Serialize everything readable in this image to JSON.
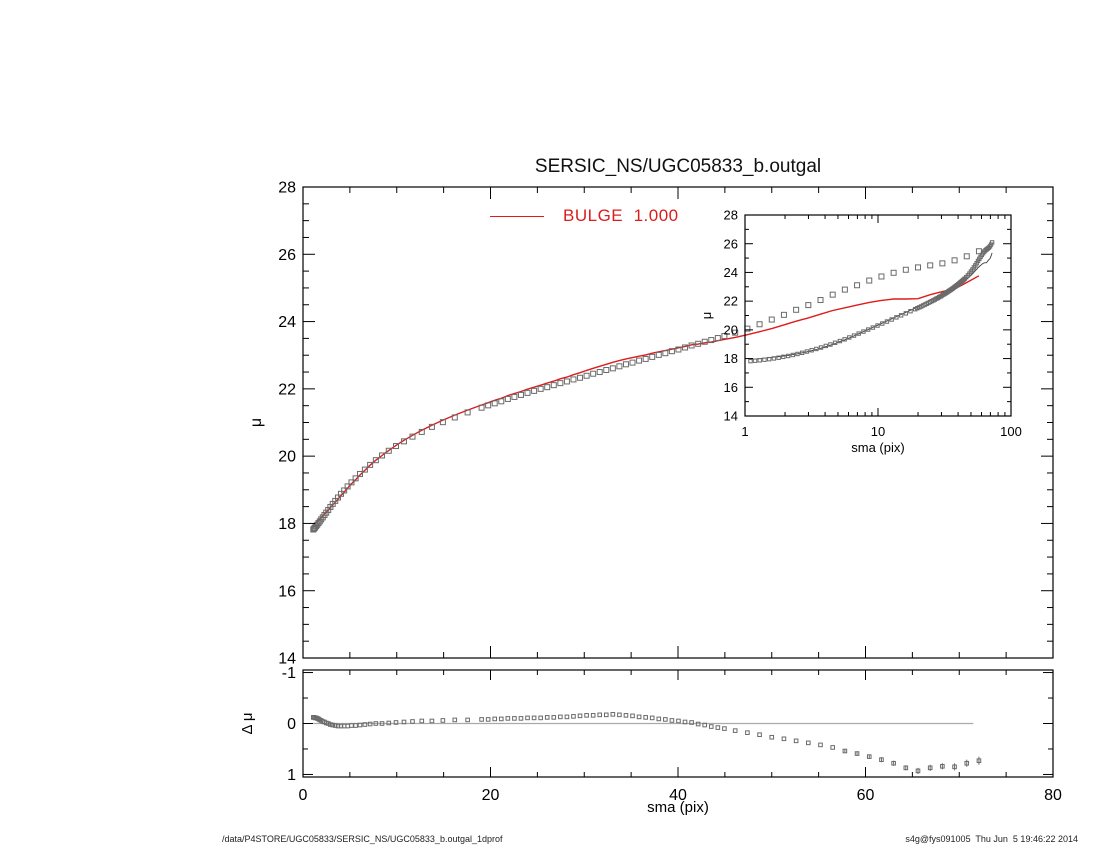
{
  "title": "SERSIC_NS/UGC05833_b.outgal",
  "legend": {
    "label": "BULGE  1.000",
    "color": "#dd1c1c"
  },
  "footer": {
    "left": "/data/P4STORE/UGC05833/SERSIC_NS/UGC05833_b.outgal_1dprof",
    "right": "s4g@fys091005  Thu Jun  5 19:46:22 2014"
  },
  "colors": {
    "data": "#6a6a6a",
    "model": "#dd1c1c",
    "inset_line": "#3c3c3c",
    "zero_line": "#aaaaaa",
    "axis": "#000000"
  },
  "chart_data": {
    "type": "scatter",
    "profile": {
      "sma": [
        1.1,
        1.19,
        1.29,
        1.4,
        1.52,
        1.65,
        1.79,
        1.94,
        2.11,
        2.29,
        2.48,
        2.69,
        2.92,
        3.17,
        3.44,
        3.73,
        4.05,
        4.39,
        4.76,
        5.17,
        5.61,
        6.08,
        6.6,
        7.16,
        7.77,
        8.43,
        9.15,
        9.92,
        10.77,
        11.68,
        12.67,
        13.75,
        14.92,
        16.19,
        17.56,
        19.05,
        19.75,
        20.45,
        21.15,
        21.85,
        22.55,
        23.25,
        23.95,
        24.65,
        25.35,
        26.05,
        26.75,
        27.45,
        28.15,
        28.85,
        29.55,
        30.25,
        30.95,
        31.65,
        32.35,
        33.05,
        33.75,
        34.45,
        35.15,
        35.85,
        36.55,
        37.25,
        37.95,
        38.65,
        39.35,
        40.05,
        40.75,
        41.45,
        42.15,
        42.85,
        43.55,
        44.25,
        44.95,
        46.1,
        47.4,
        48.7,
        50,
        51.3,
        52.6,
        53.9,
        55.2,
        56.5,
        57.8,
        59.1,
        60.4,
        61.7,
        63,
        64.3,
        65.6,
        66.9,
        68.2,
        69.5,
        70.8,
        72.1
      ],
      "mu": [
        17.82,
        17.85,
        17.88,
        17.92,
        17.96,
        18.01,
        18.06,
        18.12,
        18.18,
        18.25,
        18.32,
        18.4,
        18.49,
        18.58,
        18.67,
        18.77,
        18.88,
        18.98,
        19.1,
        19.22,
        19.34,
        19.47,
        19.6,
        19.74,
        19.88,
        20.02,
        20.16,
        20.3,
        20.44,
        20.58,
        20.72,
        20.87,
        21.01,
        21.15,
        21.3,
        21.44,
        21.51,
        21.57,
        21.63,
        21.7,
        21.76,
        21.82,
        21.88,
        21.94,
        22,
        22.05,
        22.11,
        22.17,
        22.22,
        22.28,
        22.33,
        22.39,
        22.45,
        22.5,
        22.56,
        22.61,
        22.67,
        22.73,
        22.78,
        22.84,
        22.89,
        22.95,
        23.01,
        23.06,
        23.12,
        23.17,
        23.23,
        23.29,
        23.34,
        23.4,
        23.45,
        23.51,
        23.57,
        23.67,
        23.79,
        23.92,
        24.06,
        24.2,
        24.35,
        24.49,
        24.64,
        24.8,
        24.95,
        25.08,
        25.22,
        25.34,
        25.45,
        25.54,
        25.61,
        25.67,
        25.73,
        25.82,
        25.94,
        26.09
      ],
      "mu_model": [
        17.94,
        17.97,
        17.99,
        18.03,
        18.06,
        18.1,
        18.13,
        18.18,
        18.22,
        18.28,
        18.33,
        18.4,
        18.47,
        18.55,
        18.63,
        18.72,
        18.83,
        18.93,
        19.05,
        19.18,
        19.3,
        19.44,
        19.58,
        19.73,
        19.88,
        20.02,
        20.17,
        20.32,
        20.47,
        20.62,
        20.77,
        20.92,
        21.07,
        21.22,
        21.37,
        21.52,
        21.59,
        21.66,
        21.72,
        21.8,
        21.86,
        21.92,
        21.99,
        22.05,
        22.11,
        22.17,
        22.23,
        22.3,
        22.35,
        22.42,
        22.48,
        22.55,
        22.61,
        22.67,
        22.73,
        22.79,
        22.84,
        22.89,
        22.93,
        22.97,
        23.01,
        23.06,
        23.1,
        23.14,
        23.18,
        23.22,
        23.26,
        23.31,
        23.33,
        23.37,
        23.39,
        23.43,
        23.47,
        23.53,
        23.61,
        23.7,
        23.79,
        23.9,
        24.01,
        24.11,
        24.22,
        24.33,
        24.41,
        24.49,
        24.57,
        24.63,
        24.67,
        24.67,
        24.68,
        24.8,
        24.89,
        24.97,
        25.16,
        25.36
      ],
      "dmu": [
        -0.12,
        -0.12,
        -0.11,
        -0.11,
        -0.1,
        -0.09,
        -0.07,
        -0.06,
        -0.04,
        -0.03,
        -0.01,
        0,
        0.02,
        0.03,
        0.04,
        0.05,
        0.05,
        0.05,
        0.05,
        0.04,
        0.04,
        0.03,
        0.02,
        0.01,
        0,
        0,
        -0.01,
        -0.02,
        -0.03,
        -0.04,
        -0.05,
        -0.05,
        -0.06,
        -0.07,
        -0.07,
        -0.08,
        -0.08,
        -0.09,
        -0.09,
        -0.1,
        -0.1,
        -0.1,
        -0.11,
        -0.11,
        -0.11,
        -0.12,
        -0.12,
        -0.13,
        -0.13,
        -0.14,
        -0.15,
        -0.16,
        -0.16,
        -0.17,
        -0.17,
        -0.18,
        -0.17,
        -0.16,
        -0.15,
        -0.13,
        -0.12,
        -0.11,
        -0.09,
        -0.08,
        -0.06,
        -0.05,
        -0.03,
        -0.02,
        0.01,
        0.03,
        0.06,
        0.08,
        0.1,
        0.14,
        0.18,
        0.22,
        0.27,
        0.3,
        0.34,
        0.38,
        0.42,
        0.47,
        0.54,
        0.59,
        0.65,
        0.71,
        0.78,
        0.87,
        0.93,
        0.87,
        0.84,
        0.85,
        0.78,
        0.73
      ],
      "residual_errors": {
        "sma": [
          57.8,
          59.1,
          60.4,
          61.7,
          63,
          64.3,
          65.6,
          66.9,
          68.2,
          69.5,
          70.8,
          72.1
        ],
        "err": [
          0.04,
          0.04,
          0.04,
          0.05,
          0.05,
          0.05,
          0.06,
          0.06,
          0.06,
          0.07,
          0.07,
          0.08
        ]
      }
    },
    "panels": [
      {
        "id": "main",
        "title": "SERSIC_NS/UGC05833_b.outgal",
        "xlabel": "",
        "ylabel": "μ",
        "xlim": [
          0,
          80
        ],
        "ylim": [
          28,
          14
        ],
        "xticks": [
          0,
          20,
          40,
          60,
          80
        ],
        "yticks": [
          14,
          16,
          18,
          20,
          22,
          24,
          26,
          28
        ],
        "x_minor_step": 5,
        "y_minor_step": 0.5,
        "x_tick_labels": false,
        "series": [
          {
            "name": "bulge-model-line",
            "style": "line",
            "y_key": "mu_model",
            "color_key": "model"
          },
          {
            "name": "observed-profile",
            "style": "squares",
            "y_key": "mu",
            "color_key": "data",
            "size": 5
          }
        ]
      },
      {
        "id": "inset",
        "xlabel": "sma (pix)",
        "ylabel": "μ",
        "xscale": "log",
        "xlim": [
          1,
          100
        ],
        "ylim": [
          28,
          14
        ],
        "xticks": [
          1,
          10,
          100
        ],
        "yticks": [
          14,
          16,
          18,
          20,
          22,
          24,
          26,
          28
        ],
        "y_minor_step": 1,
        "x_tick_labels": true,
        "series": [
          {
            "name": "bulge-model-line",
            "style": "line",
            "y_key": "mu_model",
            "color_key": "inset_line"
          },
          {
            "name": "observed-profile",
            "style": "squares",
            "y_key": "mu",
            "color_key": "data",
            "size": 3.4
          }
        ]
      },
      {
        "id": "residual",
        "xlabel": "sma (pix)",
        "ylabel": "Δ μ",
        "xlim": [
          0,
          80
        ],
        "ylim": [
          -1.05,
          1.05
        ],
        "xticks": [
          0,
          20,
          40,
          60,
          80
        ],
        "yticks": [
          -1,
          0,
          1
        ],
        "x_minor_step": 5,
        "y_minor_step": 0.5,
        "x_tick_labels": true,
        "zero_line": true,
        "series": [
          {
            "name": "residual-profile",
            "style": "squares",
            "y_key": "dmu",
            "color_key": "data",
            "size": 3.6
          }
        ]
      }
    ]
  }
}
